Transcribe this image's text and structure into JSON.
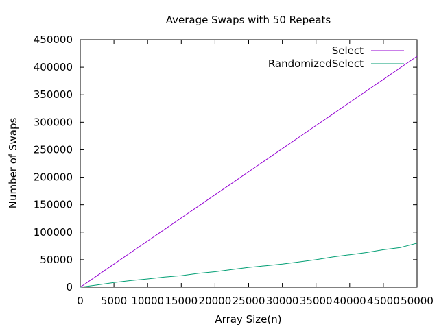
{
  "chart_data": {
    "type": "line",
    "title": "Average Swaps with 50 Repeats",
    "xlabel": "Array Size(n)",
    "ylabel": "Number of Swaps",
    "xlim": [
      0,
      50000
    ],
    "ylim": [
      0,
      450000
    ],
    "x_ticks": [
      0,
      5000,
      10000,
      15000,
      20000,
      25000,
      30000,
      35000,
      40000,
      45000,
      50000
    ],
    "y_ticks": [
      0,
      50000,
      100000,
      150000,
      200000,
      250000,
      300000,
      350000,
      400000,
      450000
    ],
    "x_tick_labels": [
      "0",
      "5000",
      "10000",
      "15000",
      "20000",
      "25000",
      "30000",
      "35000",
      "40000",
      "45000",
      "50000"
    ],
    "y_tick_labels": [
      "0",
      "50000",
      "100000",
      "150000",
      "200000",
      "250000",
      "300000",
      "350000",
      "400000",
      "450000"
    ],
    "grid": false,
    "legend_position": "top-right",
    "series": [
      {
        "name": "Select",
        "color": "#9400d3",
        "x": [
          0,
          2500,
          5000,
          7500,
          10000,
          12500,
          15000,
          17500,
          20000,
          22500,
          25000,
          27500,
          30000,
          32500,
          35000,
          37500,
          40000,
          42500,
          45000,
          47500,
          50000
        ],
        "values": [
          0,
          21000,
          42000,
          63000,
          84000,
          105000,
          126000,
          147000,
          168000,
          189000,
          210000,
          231000,
          252000,
          273000,
          294000,
          315000,
          336000,
          357000,
          378000,
          399000,
          420000
        ]
      },
      {
        "name": "RandomizedSelect",
        "color": "#009e73",
        "x": [
          0,
          2500,
          5000,
          7500,
          10000,
          12500,
          15000,
          17500,
          20000,
          22500,
          25000,
          27500,
          30000,
          32500,
          35000,
          37500,
          40000,
          42500,
          45000,
          47500,
          50000
        ],
        "values": [
          0,
          4000,
          8500,
          12000,
          15000,
          18500,
          21000,
          25000,
          28000,
          32000,
          36000,
          39000,
          42000,
          46000,
          50000,
          55000,
          59000,
          63000,
          68000,
          72000,
          80000
        ]
      }
    ]
  }
}
